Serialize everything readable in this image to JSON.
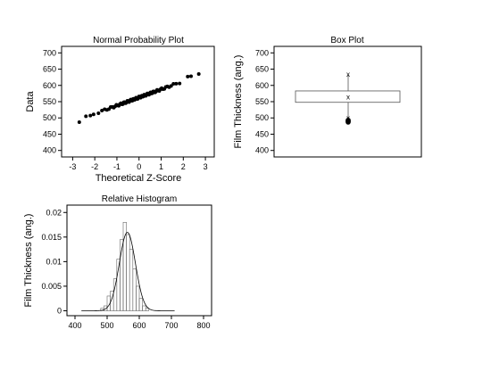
{
  "chart_data": [
    {
      "type": "scatter",
      "title": "Normal Probability Plot",
      "xlabel": "Theoretical Z-Score",
      "ylabel": "Data",
      "xlim": [
        -3.5,
        3.4
      ],
      "ylim": [
        380,
        720
      ],
      "xticks": [
        "-3",
        "-2",
        "-1",
        "0",
        "1",
        "2",
        "3"
      ],
      "yticks": [
        "400",
        "450",
        "500",
        "550",
        "600",
        "650",
        "700"
      ],
      "description_of_points": "approx. 75 ordered observations vs normal quantiles, roughly linear from (-2.7, 487) to (2.7, 635)",
      "points_z_range": [
        -2.7,
        2.7
      ],
      "fit": {
        "mean": 563,
        "sd": 25
      },
      "extremes": [
        [
          -2.7,
          487
        ],
        [
          -2.4,
          505
        ],
        [
          -2.2,
          507
        ],
        [
          2.2,
          627
        ],
        [
          2.35,
          628
        ],
        [
          2.7,
          635
        ]
      ]
    },
    {
      "type": "box",
      "title": "Box Plot",
      "ylabel": "Film Thickness (ang.)",
      "ylim": [
        380,
        720
      ],
      "yticks": [
        "400",
        "450",
        "500",
        "550",
        "600",
        "650",
        "700"
      ],
      "q1": 548,
      "q3": 583,
      "median": 565,
      "mean": 565,
      "whisker_low": 500,
      "whisker_high": 635,
      "outliers": [
        487,
        489,
        491,
        493
      ]
    },
    {
      "type": "bar",
      "title": "Relative Histogram",
      "ylabel": "Film Thickness (ang.)",
      "xlim": [
        375,
        825
      ],
      "ylim": [
        -0.001,
        0.0215
      ],
      "xticks": [
        "400",
        "500",
        "600",
        "700",
        "800"
      ],
      "yticks": [
        "0",
        "0.005",
        "0.01",
        "0.015",
        "0.02"
      ],
      "bin_width": 10,
      "bins": [
        {
          "x0": 480,
          "value": 0.0005
        },
        {
          "x0": 490,
          "value": 0.001
        },
        {
          "x0": 500,
          "value": 0.003
        },
        {
          "x0": 510,
          "value": 0.004
        },
        {
          "x0": 520,
          "value": 0.0065
        },
        {
          "x0": 530,
          "value": 0.0105
        },
        {
          "x0": 540,
          "value": 0.0145
        },
        {
          "x0": 550,
          "value": 0.018
        },
        {
          "x0": 560,
          "value": 0.0155
        },
        {
          "x0": 570,
          "value": 0.0125
        },
        {
          "x0": 580,
          "value": 0.0085
        },
        {
          "x0": 590,
          "value": 0.005
        },
        {
          "x0": 600,
          "value": 0.0025
        },
        {
          "x0": 610,
          "value": 0.001
        },
        {
          "x0": 620,
          "value": 0.0005
        }
      ],
      "curve": {
        "mean": 563,
        "sd": 25,
        "x_range": [
          420,
          710
        ]
      }
    }
  ]
}
